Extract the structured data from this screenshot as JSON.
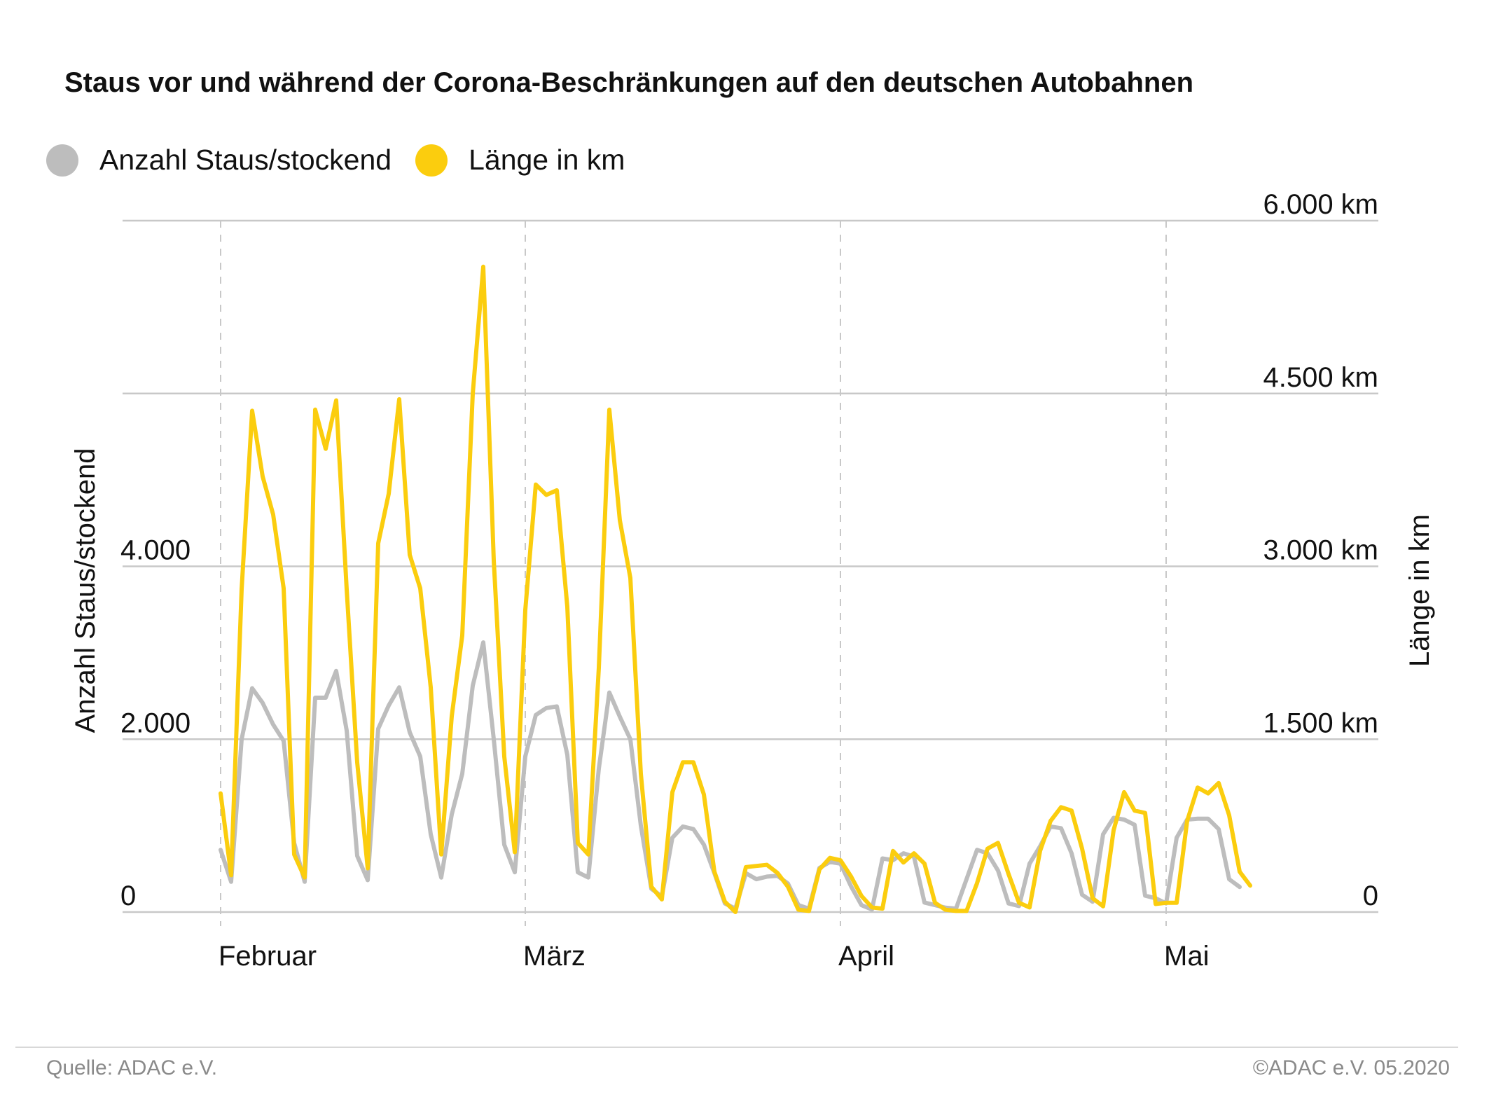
{
  "colors": {
    "staus": "#bdbdbd",
    "laenge": "#fbcd0e",
    "grid": "#c8c8c8",
    "month_grid": "#c8c8c8",
    "text": "#111111",
    "footer": "#8a8a8a"
  },
  "title": "Staus vor und während der Corona-Beschränkungen auf den deutschen Autobahnen",
  "legend": [
    {
      "label": "Anzahl Staus/stockend",
      "color": "#bdbdbd"
    },
    {
      "label": "Länge in km",
      "color": "#fbcd0e"
    }
  ],
  "footer": {
    "source": "Quelle: ADAC e.V.",
    "copyright": "©ADAC e.V.  05.2020"
  },
  "chart_data": {
    "type": "line",
    "title": "Staus vor und während der Corona-Beschränkungen auf den deutschen Autobahnen",
    "x_ticks": [
      "Februar",
      "März",
      "April",
      "Mai"
    ],
    "x_tick_index": [
      0,
      29,
      59,
      90
    ],
    "y_left": {
      "label": "Anzahl Staus/stockend",
      "range": [
        0,
        8000
      ],
      "ticks": [
        0,
        2000,
        4000
      ],
      "tick_labels": [
        "0",
        "2.000",
        "4.000"
      ]
    },
    "y_right": {
      "label": "Länge in km",
      "range": [
        0,
        6000
      ],
      "ticks": [
        0,
        1500,
        3000,
        4500,
        6000
      ],
      "tick_labels": [
        "0",
        "1.500 km",
        "3.000 km",
        "4.500 km",
        "6.000 km"
      ]
    },
    "grid": true,
    "legend_position": "top-left",
    "series": [
      {
        "name": "Anzahl Staus/stockend",
        "axis": "left",
        "values": [
          720,
          350,
          2000,
          2590,
          2420,
          2170,
          1980,
          800,
          350,
          2480,
          2480,
          2790,
          2100,
          650,
          370,
          2120,
          2390,
          2600,
          2080,
          1800,
          900,
          400,
          1130,
          1600,
          2620,
          3120,
          2000,
          780,
          460,
          1800,
          2280,
          2360,
          2380,
          1820,
          460,
          400,
          1660,
          2540,
          2260,
          2000,
          1000,
          270,
          180,
          860,
          990,
          960,
          780,
          450,
          100,
          40,
          450,
          380,
          410,
          420,
          330,
          80,
          40,
          510,
          580,
          560,
          300,
          80,
          30,
          620,
          600,
          680,
          640,
          110,
          80,
          50,
          40,
          380,
          720,
          680,
          480,
          100,
          70,
          560,
          760,
          990,
          970,
          680,
          200,
          120,
          900,
          1090,
          1070,
          1010,
          190,
          160,
          100,
          860,
          1070,
          1080,
          1080,
          960,
          380,
          290
        ]
      },
      {
        "name": "Länge in km",
        "axis": "right",
        "values": [
          1030,
          320,
          2800,
          4350,
          3780,
          3450,
          2810,
          500,
          300,
          4360,
          4020,
          4440,
          2800,
          1300,
          380,
          3200,
          3630,
          4450,
          3100,
          2810,
          1950,
          500,
          1700,
          2400,
          4500,
          5600,
          3050,
          1350,
          520,
          2620,
          3710,
          3620,
          3660,
          2650,
          600,
          500,
          2120,
          4360,
          3400,
          2900,
          1200,
          220,
          110,
          1040,
          1300,
          1300,
          1020,
          350,
          90,
          0,
          390,
          400,
          410,
          340,
          220,
          20,
          10,
          370,
          470,
          450,
          310,
          140,
          40,
          30,
          530,
          430,
          510,
          420,
          80,
          20,
          10,
          10,
          250,
          550,
          600,
          330,
          80,
          40,
          530,
          790,
          910,
          880,
          550,
          120,
          50,
          710,
          1040,
          880,
          860,
          70,
          80,
          80,
          790,
          1080,
          1030,
          1120,
          840,
          350,
          230
        ]
      }
    ]
  }
}
